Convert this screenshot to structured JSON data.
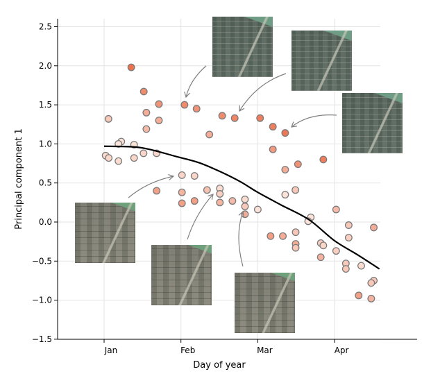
{
  "chart_data": {
    "type": "scatter",
    "xlabel": "Day of year",
    "ylabel": "Principal component 1",
    "xlim": [
      -17,
      123
    ],
    "ylim": [
      -1.5,
      2.6
    ],
    "x_ticks": [
      {
        "label": "Jan",
        "value": 1
      },
      {
        "label": "Feb",
        "value": 31
      },
      {
        "label": "Mar",
        "value": 61
      },
      {
        "label": "Apr",
        "value": 91
      }
    ],
    "y_ticks": [
      {
        "label": "2.5",
        "value": 2.5
      },
      {
        "label": "2.0",
        "value": 2.0
      },
      {
        "label": "1.5",
        "value": 1.5
      },
      {
        "label": "1.0",
        "value": 1.0
      },
      {
        "label": "0.5",
        "value": 0.5
      },
      {
        "label": "0.0",
        "value": 0.0
      },
      {
        "label": "−0.5",
        "value": -0.5
      },
      {
        "label": "−1.0",
        "value": -1.0
      },
      {
        "label": "−1.5",
        "value": -1.5
      }
    ],
    "grid": true,
    "point_color_low": "#fdf0ea",
    "point_color_high": "#ec6a45",
    "point_edge_color": "#7a7a7a",
    "points": [
      [
        11.6,
        1.98,
        0.95
      ],
      [
        16.5,
        1.67,
        0.75
      ],
      [
        22.4,
        1.51,
        0.7
      ],
      [
        32.4,
        1.5,
        0.75
      ],
      [
        37.1,
        1.45,
        0.7
      ],
      [
        47.1,
        1.36,
        0.75
      ],
      [
        52.0,
        1.33,
        0.8
      ],
      [
        17.5,
        1.4,
        0.5
      ],
      [
        2.7,
        1.32,
        0.3
      ],
      [
        22.4,
        1.3,
        0.5
      ],
      [
        17.5,
        1.19,
        0.4
      ],
      [
        42.1,
        1.12,
        0.5
      ],
      [
        7.7,
        1.03,
        0.1
      ],
      [
        6.6,
        1.0,
        0.1
      ],
      [
        12.7,
        0.99,
        0.1
      ],
      [
        1.6,
        0.85,
        0.15
      ],
      [
        2.8,
        0.82,
        0.2
      ],
      [
        6.6,
        0.78,
        0.15
      ],
      [
        12.7,
        0.82,
        0.2
      ],
      [
        16.4,
        0.88,
        0.2
      ],
      [
        21.5,
        0.88,
        0.2
      ],
      [
        31.4,
        0.6,
        0.2
      ],
      [
        36.3,
        0.59,
        0.2
      ],
      [
        21.5,
        0.4,
        0.6
      ],
      [
        31.4,
        0.38,
        0.45
      ],
      [
        31.4,
        0.24,
        0.6
      ],
      [
        36.3,
        0.27,
        0.6
      ],
      [
        41.2,
        0.41,
        0.35
      ],
      [
        46.2,
        0.43,
        0.15
      ],
      [
        46.2,
        0.36,
        0.25
      ],
      [
        46.2,
        0.25,
        0.45
      ],
      [
        51.1,
        0.27,
        0.4
      ],
      [
        61.9,
        1.33,
        0.85
      ],
      [
        66.9,
        1.22,
        0.85
      ],
      [
        71.7,
        1.14,
        0.9
      ],
      [
        66.9,
        0.93,
        0.65
      ],
      [
        86.6,
        0.8,
        0.85
      ],
      [
        76.7,
        0.74,
        0.7
      ],
      [
        71.7,
        0.67,
        0.5
      ],
      [
        56.0,
        0.29,
        0.15
      ],
      [
        56.0,
        0.2,
        0.3
      ],
      [
        56.0,
        0.1,
        0.5
      ],
      [
        61.0,
        0.16,
        0.1
      ],
      [
        75.7,
        0.41,
        0.3
      ],
      [
        71.7,
        0.35,
        0.1
      ],
      [
        81.7,
        0.06,
        0.1
      ],
      [
        80.7,
        0.01,
        0.1
      ],
      [
        91.6,
        0.16,
        0.4
      ],
      [
        96.5,
        -0.04,
        0.3
      ],
      [
        106.3,
        -0.07,
        0.5
      ],
      [
        96.5,
        -0.2,
        0.25
      ],
      [
        66.0,
        -0.18,
        0.6
      ],
      [
        70.8,
        -0.18,
        0.5
      ],
      [
        75.8,
        -0.13,
        0.3
      ],
      [
        75.8,
        -0.28,
        0.5
      ],
      [
        75.8,
        -0.33,
        0.3
      ],
      [
        85.6,
        -0.27,
        0.25
      ],
      [
        86.6,
        -0.3,
        0.2
      ],
      [
        85.6,
        -0.45,
        0.45
      ],
      [
        91.6,
        -0.37,
        0.25
      ],
      [
        95.4,
        -0.53,
        0.3
      ],
      [
        95.4,
        -0.6,
        0.3
      ],
      [
        101.4,
        -0.56,
        0.15
      ],
      [
        106.3,
        -0.75,
        0.3
      ],
      [
        105.3,
        -0.78,
        0.3
      ],
      [
        100.4,
        -0.94,
        0.6
      ],
      [
        105.3,
        -0.98,
        0.45
      ]
    ],
    "trend_curve": [
      [
        1,
        0.97
      ],
      [
        13,
        0.96
      ],
      [
        20,
        0.92
      ],
      [
        29,
        0.84
      ],
      [
        38,
        0.76
      ],
      [
        46,
        0.65
      ],
      [
        54,
        0.52
      ],
      [
        61,
        0.38
      ],
      [
        70,
        0.22
      ],
      [
        81,
        0.03
      ],
      [
        91,
        -0.24
      ],
      [
        100,
        -0.42
      ],
      [
        108.5,
        -0.6
      ]
    ],
    "trend_color": "#000000"
  }
}
